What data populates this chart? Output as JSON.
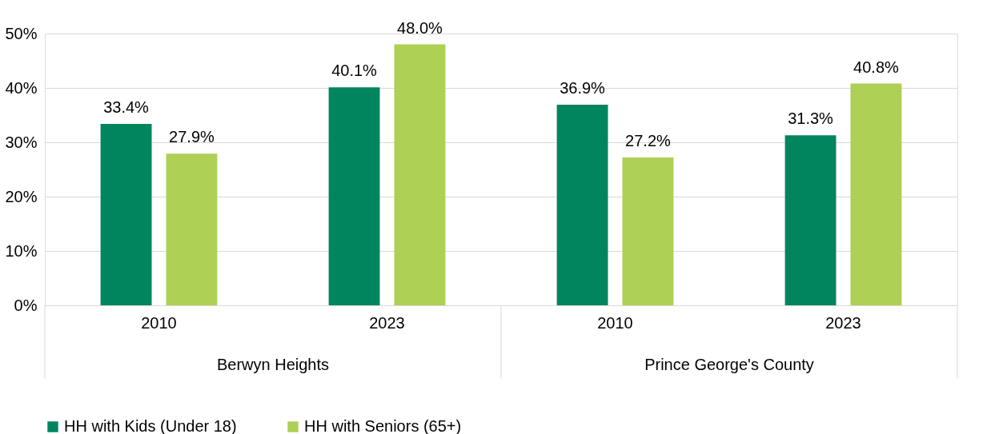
{
  "chart_data": {
    "type": "bar",
    "categories": [
      "2010",
      "2023",
      "2010",
      "2023"
    ],
    "annotations": [
      "Berwyn Heights",
      "Prince George's County"
    ],
    "series": [
      {
        "name": "HH with Kids (Under 18)",
        "color": "#00855f",
        "values": [
          33.4,
          40.1,
          36.9,
          31.3
        ],
        "value_labels": [
          "33.4%",
          "40.1%",
          "36.9%",
          "31.3%"
        ]
      },
      {
        "name": "HH with Seniors (65+)",
        "color": "#add055",
        "values": [
          27.9,
          48.0,
          27.2,
          40.8
        ],
        "value_labels": [
          "27.9%",
          "48.0%",
          "27.2%",
          "40.8%"
        ]
      }
    ],
    "ylim": [
      0,
      50
    ],
    "yticks": [
      {
        "value": 0,
        "label": "0%"
      },
      {
        "value": 10,
        "label": "10%"
      },
      {
        "value": 20,
        "label": "20%"
      },
      {
        "value": 30,
        "label": "30%"
      },
      {
        "value": 40,
        "label": "40%"
      },
      {
        "value": 50,
        "label": "50%"
      }
    ],
    "grid": "y",
    "legend": "bottom"
  }
}
